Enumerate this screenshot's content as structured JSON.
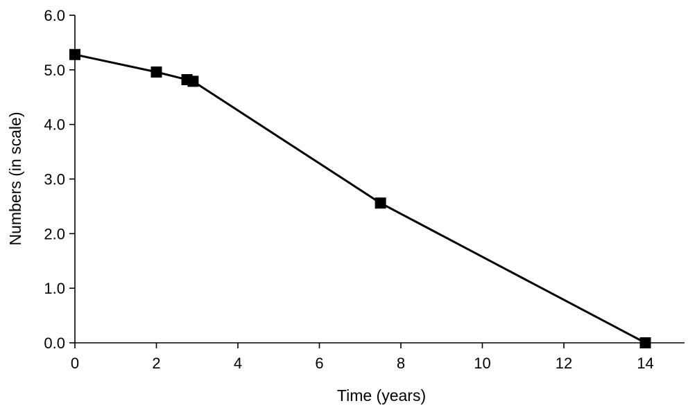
{
  "chart_data": {
    "type": "line",
    "title": "",
    "xlabel": "Time (years)",
    "ylabel": "Numbers (in scale)",
    "xlim": [
      0,
      15
    ],
    "ylim": [
      0,
      6
    ],
    "xticks": [
      0,
      2,
      4,
      6,
      8,
      10,
      12,
      14
    ],
    "xtick_labels": [
      "0",
      "2",
      "4",
      "6",
      "8",
      "10",
      "12",
      "14"
    ],
    "yticks": [
      0,
      1,
      2,
      3,
      4,
      5,
      6
    ],
    "ytick_labels": [
      "0.0",
      "1.0",
      "2.0",
      "3.0",
      "4.0",
      "5.0",
      "6.0"
    ],
    "grid": false,
    "legend": "none",
    "series": [
      {
        "marker": "square",
        "color": "#000000",
        "x": [
          0,
          2,
          2.75,
          2.9,
          7.5,
          14
        ],
        "y": [
          5.28,
          4.96,
          4.82,
          4.79,
          2.56,
          0.0
        ]
      }
    ]
  }
}
